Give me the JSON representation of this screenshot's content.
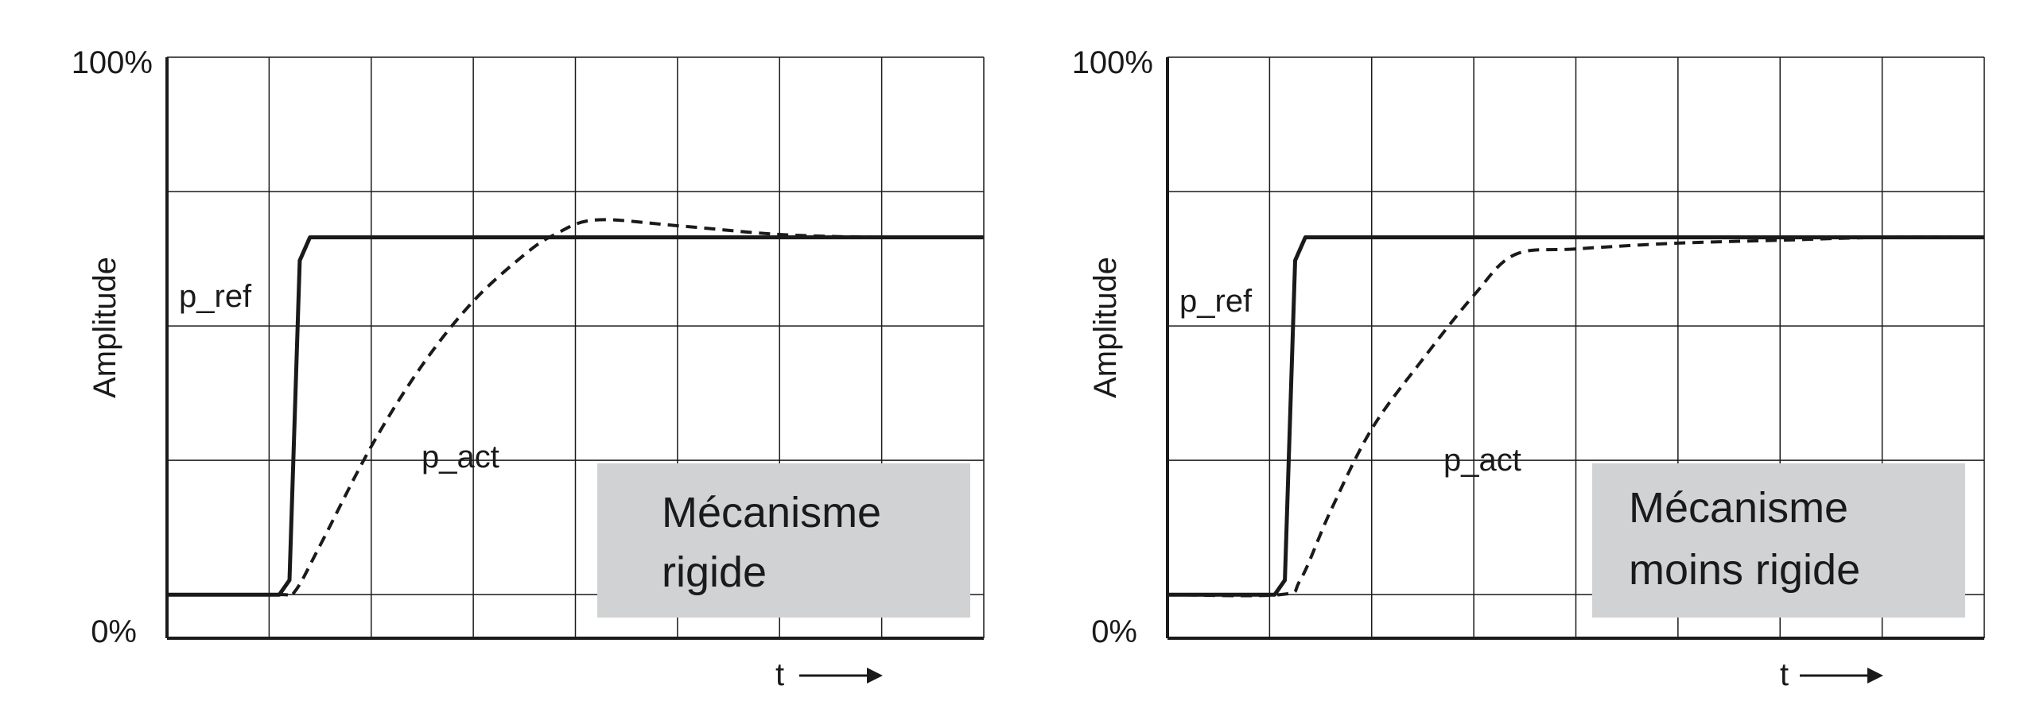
{
  "chart_data": [
    {
      "type": "line",
      "ylabel": "Amplitude",
      "xlabel": "t",
      "xlabel_arrow": "→",
      "y_ticks": [
        "100%",
        "0%"
      ],
      "ylim": [
        0,
        100
      ],
      "xlim": [
        0,
        8
      ],
      "grid": true,
      "series": [
        {
          "name": "p_ref",
          "x": [
            0,
            1.1,
            1.2,
            1.3,
            1.4,
            8
          ],
          "y": [
            7.5,
            7.5,
            10,
            65,
            69,
            69
          ]
        },
        {
          "name": "p_act",
          "x": [
            0,
            1.1,
            1.25,
            1.5,
            2.0,
            2.5,
            3.0,
            3.5,
            3.8,
            4.2,
            5.0,
            6.0,
            7.0,
            8.0
          ],
          "y": [
            7.5,
            7.5,
            8,
            16,
            33,
            47,
            58,
            66,
            69.5,
            72,
            71,
            69.5,
            69,
            69
          ]
        }
      ],
      "annotation": [
        "Mécanisme",
        "rigide"
      ]
    },
    {
      "type": "line",
      "ylabel": "Amplitude",
      "xlabel": "t",
      "xlabel_arrow": "→",
      "y_ticks": [
        "100%",
        "0%"
      ],
      "ylim": [
        0,
        100
      ],
      "xlim": [
        0,
        8
      ],
      "grid": true,
      "series": [
        {
          "name": "p_ref",
          "x": [
            0,
            1.05,
            1.15,
            1.25,
            1.35,
            8
          ],
          "y": [
            7.5,
            7.5,
            10,
            65,
            69,
            69
          ]
        },
        {
          "name": "p_act",
          "x": [
            0,
            1.1,
            1.3,
            1.6,
            2.0,
            2.5,
            3.0,
            3.4,
            4.0,
            5.0,
            6.0,
            7.0,
            8.0
          ],
          "y": [
            7.5,
            7.5,
            10,
            22,
            36,
            48,
            59,
            66,
            67,
            68,
            68.5,
            69,
            69
          ]
        }
      ],
      "annotation": [
        "Mécanisme",
        "moins rigide"
      ]
    }
  ],
  "colors": {
    "line": "#1a1a1a",
    "box_fill": "#d1d2d4",
    "background": "#ffffff"
  }
}
